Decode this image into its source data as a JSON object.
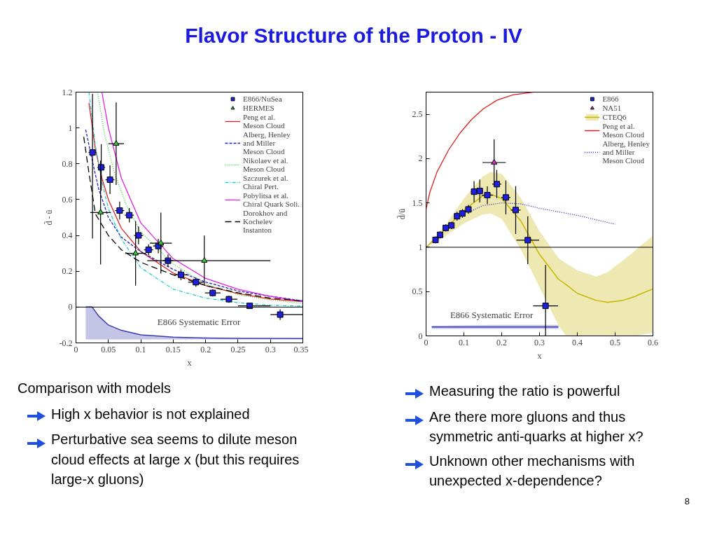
{
  "chart_data": [
    {
      "type": "line",
      "title": "Flavor Structure of the Proton - IV",
      "xlabel": "x",
      "ylabel": "d̄ - ū",
      "xlim": [
        0,
        0.35
      ],
      "ylim": [
        -0.2,
        1.2
      ],
      "xticks": [
        0,
        0.05,
        0.1,
        0.15,
        0.2,
        0.25,
        0.3,
        0.35
      ],
      "yticks": [
        -0.2,
        0,
        0.2,
        0.4,
        0.6,
        0.8,
        1,
        1.2
      ],
      "grid": false,
      "legend": "top right",
      "ref_lines": [
        {
          "axis": "y",
          "value": 0,
          "color": "#000000"
        }
      ],
      "annotations": [
        "E866 Systematic Error",
        "Comparison with models",
        "High x behavior is not explained",
        "Perturbative sea seems to dilute meson cloud effects at large x (but this requires large-x gluons)"
      ],
      "series": [
        {
          "name": "E866/NuSea",
          "type": "scatter",
          "marker": "square",
          "color": "#1f1fe0",
          "x": [
            0.0255,
            0.039,
            0.0525,
            0.0674,
            0.0823,
            0.0965,
            0.112,
            0.127,
            0.142,
            0.162,
            0.185,
            0.211,
            0.236,
            0.268,
            0.315
          ],
          "values": [
            0.863,
            0.78,
            0.711,
            0.539,
            0.513,
            0.4,
            0.32,
            0.341,
            0.259,
            0.18,
            0.139,
            0.079,
            0.044,
            0.007,
            -0.042
          ],
          "errors": [
            [
              0.383,
              1.19
            ],
            0.13,
            0.08,
            0.05,
            0.04,
            0.05,
            0.03,
            0.04,
            0.035,
            0.03,
            0.025,
            0.02,
            0.02,
            0.015,
            0.03
          ],
          "xerrors": [
            0.006,
            0.006,
            0.007,
            0.007,
            0.007,
            0.007,
            0.007,
            0.008,
            0.008,
            0.012,
            0.012,
            0.012,
            0.013,
            [
              0.25,
              0.3
            ],
            [
              0.3,
              0.35
            ]
          ]
        },
        {
          "name": "HERMES",
          "type": "scatter",
          "marker": "triangle",
          "color": "#33cc33",
          "x": [
            0.038,
            0.062,
            0.092,
            0.131,
            0.198
          ],
          "values": [
            0.528,
            0.912,
            0.3,
            0.357,
            0.259
          ],
          "errors": [
            0.29,
            0.23,
            0.18,
            0.17,
            0.14
          ],
          "xerrors": [
            0.016,
            0.012,
            0.016,
            0.017,
            [
              0.11,
              0.3
            ]
          ]
        },
        {
          "name": "Peng et al.\nMeson Cloud",
          "line_style": "solid",
          "color": "#e02020",
          "x": [
            0.02,
            0.03,
            0.04,
            0.05,
            0.07,
            0.1,
            0.15,
            0.2,
            0.25,
            0.3,
            0.35
          ],
          "values": [
            1.14,
            0.88,
            0.72,
            0.6,
            0.44,
            0.31,
            0.19,
            0.12,
            0.075,
            0.045,
            0.03
          ]
        },
        {
          "name": "Alberg, Henley\nand Miller\nMeson Cloud",
          "line_style": "dashed",
          "color": "#2020d0",
          "x": [
            0.015,
            0.025,
            0.035,
            0.05,
            0.07,
            0.1,
            0.15,
            0.2,
            0.25,
            0.3,
            0.35
          ],
          "values": [
            0.99,
            0.82,
            0.66,
            0.5,
            0.39,
            0.31,
            0.21,
            0.14,
            0.09,
            0.06,
            0.035
          ]
        },
        {
          "name": "Nikolaev et al.\nMeson Cloud",
          "line_style": "dotted",
          "color": "#33cc33",
          "x": [
            0.033,
            0.045,
            0.06,
            0.08,
            0.1,
            0.15,
            0.2,
            0.25,
            0.3,
            0.35
          ],
          "values": [
            1.2,
            0.95,
            0.74,
            0.55,
            0.42,
            0.24,
            0.13,
            0.07,
            0.04,
            0.02
          ]
        },
        {
          "name": "Szczurek et al.\nChiral Pert.",
          "line_style": "dashdot",
          "color": "#22cccc",
          "x": [
            0.02,
            0.03,
            0.04,
            0.05,
            0.07,
            0.1,
            0.15,
            0.2,
            0.25,
            0.3,
            0.35
          ],
          "values": [
            1.2,
            0.9,
            0.7,
            0.55,
            0.38,
            0.22,
            0.1,
            0.05,
            0.025,
            0.01,
            0.005
          ]
        },
        {
          "name": "Pobylitsa et al.\nChiral Quark Soli.",
          "line_style": "solid",
          "color": "#e020e0",
          "x": [
            0.04,
            0.05,
            0.07,
            0.1,
            0.15,
            0.2,
            0.25,
            0.3,
            0.35
          ],
          "values": [
            1.2,
            1.0,
            0.72,
            0.47,
            0.27,
            0.16,
            0.1,
            0.06,
            0.03
          ]
        },
        {
          "name": "Dorokhov and\nKochelev\nInstanton",
          "line_style": "longdash",
          "color": "#000000",
          "x": [
            0.012,
            0.02,
            0.03,
            0.05,
            0.07,
            0.1,
            0.15,
            0.2,
            0.25,
            0.3,
            0.35
          ],
          "values": [
            0.95,
            0.75,
            0.52,
            0.4,
            0.32,
            0.25,
            0.18,
            0.12,
            0.08,
            0.05,
            0.035
          ]
        },
        {
          "color": "#3a3ab0",
          "x": [
            0.015,
            0.025,
            0.035,
            0.05,
            0.07,
            0.1,
            0.15,
            0.2,
            0.25,
            0.35
          ],
          "values": [
            0,
            0,
            -0.05,
            -0.1,
            -0.13,
            -0.155,
            -0.168,
            -0.173,
            -0.175,
            -0.176
          ],
          "upper": [
            0,
            0,
            -0.05,
            -0.1,
            -0.13,
            -0.155,
            -0.168,
            -0.173,
            -0.175,
            -0.176
          ],
          "lower": [
            -0.18,
            -0.18,
            -0.18,
            -0.18,
            -0.18,
            -0.18,
            -0.18,
            -0.18,
            -0.18,
            -0.18
          ]
        }
      ]
    },
    {
      "type": "line",
      "xlabel": "x",
      "ylabel": "d̄/ū",
      "xlim": [
        0,
        0.6
      ],
      "ylim": [
        0,
        2.75
      ],
      "xticks": [
        0,
        0.1,
        0.2,
        0.3,
        0.4,
        0.5,
        0.6
      ],
      "yticks": [
        0,
        0.5,
        1,
        1.5,
        2,
        2.5
      ],
      "grid": false,
      "legend": "top right",
      "ref_lines": [
        {
          "axis": "y",
          "value": 1,
          "color": "#000000"
        }
      ],
      "annotations": [
        "E866 Systematic Error",
        "Measuring the ratio is powerful",
        "Are there more gluons and thus symmetric anti-quarks at higher x?",
        "Unknown other mechanisms with unexpected x-dependence?",
        "8"
      ],
      "series": [
        {
          "name": "E866",
          "type": "scatter",
          "marker": "square",
          "color": "#1f1fe0",
          "x": [
            0.025,
            0.037,
            0.052,
            0.067,
            0.082,
            0.096,
            0.112,
            0.127,
            0.142,
            0.162,
            0.187,
            0.211,
            0.237,
            0.269,
            0.316
          ],
          "values": [
            1.083,
            1.14,
            1.218,
            1.246,
            1.35,
            1.381,
            1.427,
            1.627,
            1.635,
            1.588,
            1.712,
            1.562,
            1.42,
            1.08,
            0.339
          ],
          "errors": [
            0.04,
            0.04,
            0.04,
            0.04,
            0.05,
            0.05,
            0.05,
            0.12,
            0.13,
            0.1,
            0.16,
            0.19,
            0.27,
            0.27,
            [
              0,
              0.8
            ]
          ],
          "xerrors": [
            0.006,
            0.006,
            0.007,
            0.007,
            0.007,
            0.007,
            0.007,
            0.008,
            0.008,
            0.015,
            0.012,
            0.012,
            0.013,
            0.03,
            0.033
          ]
        },
        {
          "name": "NA51",
          "type": "scatter",
          "marker": "triangle",
          "color": "#cc33cc",
          "x": [
            0.18
          ],
          "values": [
            1.956
          ],
          "errors": [
            0.26
          ],
          "xerrors": [
            0.031
          ]
        },
        {
          "name": "CTEQ6",
          "color": "#c8b400",
          "x": [
            0,
            0.05,
            0.1,
            0.15,
            0.17,
            0.2,
            0.25,
            0.3,
            0.35,
            0.37,
            0.4,
            0.45,
            0.48,
            0.52,
            0.55,
            0.56,
            0.6
          ],
          "values": [
            1.0,
            1.2,
            1.42,
            1.58,
            1.6,
            1.55,
            1.3,
            0.92,
            0.64,
            0.58,
            0.48,
            0.4,
            0.38,
            0.4,
            0.44,
            0.46,
            0.53
          ],
          "upper": [
            1.0,
            1.24,
            1.55,
            1.8,
            1.85,
            1.83,
            1.56,
            1.18,
            0.88,
            0.82,
            0.74,
            0.67,
            0.72,
            0.85,
            0.95,
            0.99,
            1.13
          ],
          "lower": [
            1.0,
            1.12,
            1.27,
            1.37,
            1.38,
            1.32,
            0.98,
            0.55,
            0.12,
            0.0,
            0.0,
            0.0,
            0.0,
            0.0,
            0.0,
            0.005,
            0.035
          ]
        },
        {
          "color": "#3a3ab0",
          "x": [
            0.015,
            0.1,
            0.2,
            0.35
          ],
          "values": [
            0.1,
            0.1,
            0.1,
            0.1
          ],
          "upper": [
            0.115,
            0.12,
            0.125,
            0.125
          ],
          "lower": [
            0.08,
            0.08,
            0.08,
            0.08
          ]
        },
        {
          "name": "Peng et al.\nMeson Cloud",
          "line_style": "solid",
          "color": "#e02020",
          "x": [
            0,
            0.01,
            0.029,
            0.06,
            0.09,
            0.12,
            0.151,
            0.188,
            0.23,
            0.283
          ],
          "values": [
            1.43,
            1.62,
            1.85,
            2.1,
            2.29,
            2.44,
            2.56,
            2.66,
            2.72,
            2.75
          ]
        },
        {
          "name": "Alberg, Henley\nand Miller\nMeson Cloud",
          "line_style": "dotted",
          "color": "#2020d0",
          "x": [
            0.115,
            0.15,
            0.2,
            0.25,
            0.3,
            0.4,
            0.5
          ],
          "values": [
            1.4,
            1.47,
            1.5,
            1.49,
            1.44,
            1.36,
            1.26
          ]
        }
      ]
    }
  ]
}
